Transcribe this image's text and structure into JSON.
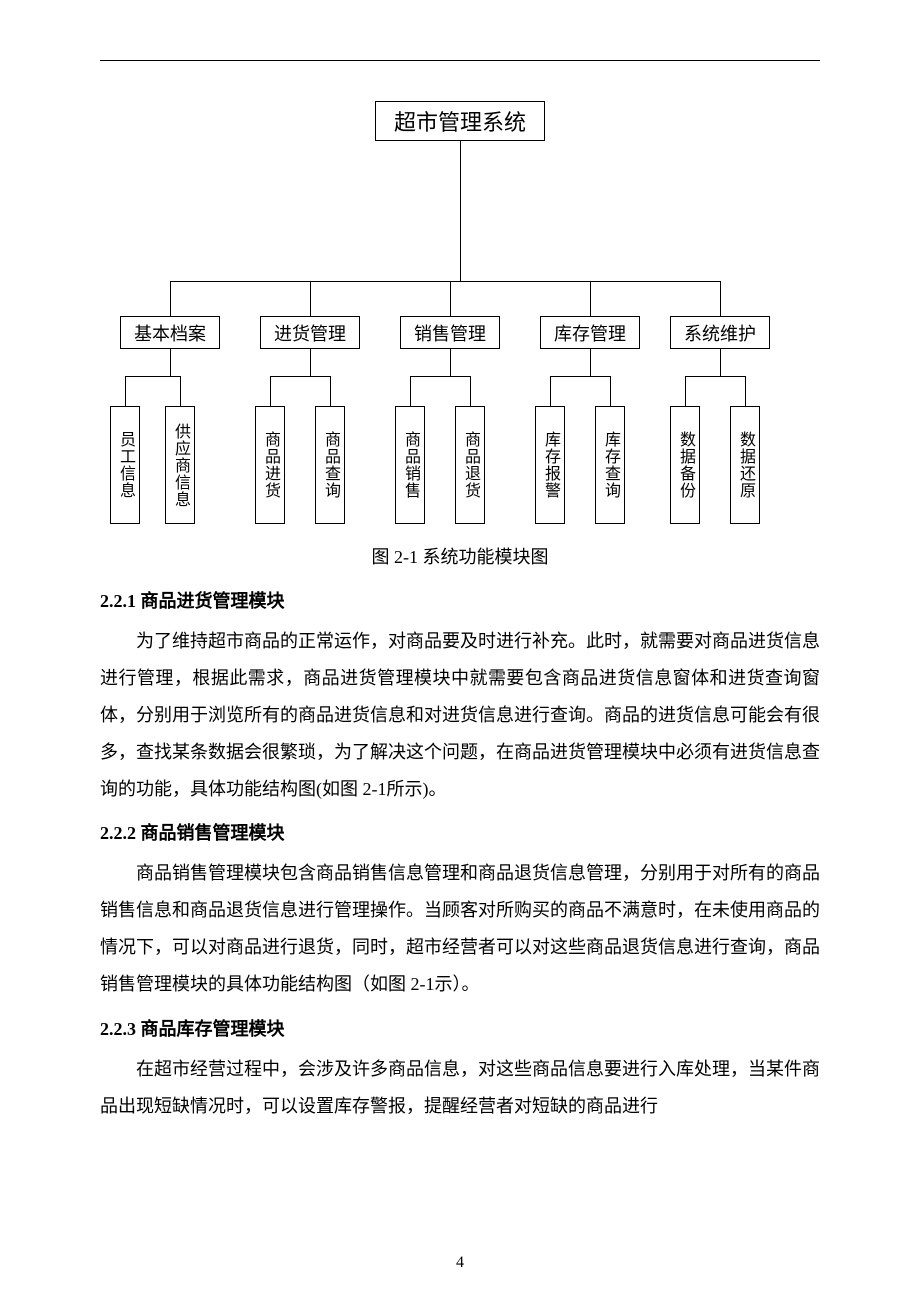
{
  "diagram": {
    "root": "超市管理系统",
    "mids": [
      "基本档案",
      "进货管理",
      "销售管理",
      "库存管理",
      "系统维护"
    ],
    "leaves": [
      "员工信息",
      "供应商信息",
      "商品进货",
      "商品查询",
      "商品销售",
      "商品退货",
      "库存报警",
      "库存查询",
      "数据备份",
      "数据还原"
    ],
    "caption": "图 2-1  系统功能模块图"
  },
  "sections": {
    "s1": {
      "heading": "2.2.1 商品进货管理模块",
      "para": "为了维持超市商品的正常运作，对商品要及时进行补充。此时，就需要对商品进货信息进行管理，根据此需求，商品进货管理模块中就需要包含商品进货信息窗体和进货查询窗体，分别用于浏览所有的商品进货信息和对进货信息进行查询。商品的进货信息可能会有很多，查找某条数据会很繁琐，为了解决这个问题，在商品进货管理模块中必须有进货信息查询的功能，具体功能结构图(如图 2-1所示)。"
    },
    "s2": {
      "heading": "2.2.2  商品销售管理模块",
      "para": "商品销售管理模块包含商品销售信息管理和商品退货信息管理，分别用于对所有的商品销售信息和商品退货信息进行管理操作。当顾客对所购买的商品不满意时，在未使用商品的情况下，可以对商品进行退货，同时，超市经营者可以对这些商品退货信息进行查询，商品销售管理模块的具体功能结构图（如图 2-1示）。"
    },
    "s3": {
      "heading": "2.2.3  商品库存管理模块",
      "para": "在超市经营过程中，会涉及许多商品信息，对这些商品信息要进行入库处理，当某件商品出现短缺情况时，可以设置库存警报，提醒经营者对短缺的商品进行"
    }
  },
  "pageNumber": "4",
  "layout": {
    "midX": [
      20,
      160,
      300,
      440,
      570
    ],
    "leafX": [
      10,
      65,
      155,
      215,
      295,
      355,
      435,
      495,
      570,
      630
    ],
    "groupCenters": [
      70,
      210,
      350,
      490,
      620
    ]
  }
}
